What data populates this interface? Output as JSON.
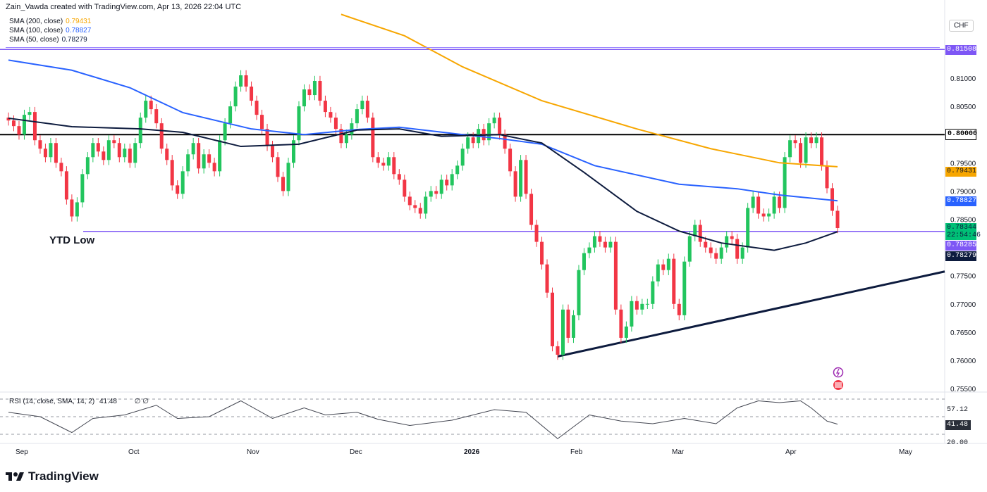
{
  "credit": "Zain_Vawda created with TradingView.com, Apr 13, 2026 22:04 UTC",
  "legend": [
    {
      "label": "SMA (200, close)",
      "value": "0.79431",
      "color": "#f7a600"
    },
    {
      "label": "SMA (100, close)",
      "value": "0.78827",
      "color": "#2962ff"
    },
    {
      "label": "SMA (50, close)",
      "value": "0.78279",
      "color": "#0d1b3e"
    }
  ],
  "currency": "CHF",
  "ytd_label": "YTD Low",
  "rsi_legend": {
    "label": "RSI (14, close, SMA, 14, 2)",
    "value": "41.48",
    "extra": "∅ ∅"
  },
  "brand": "TradingView",
  "x_labels": [
    {
      "t": "Sep",
      "x": 30
    },
    {
      "t": "Oct",
      "x": 190
    },
    {
      "t": "Nov",
      "x": 358
    },
    {
      "t": "Dec",
      "x": 504
    },
    {
      "t": "2026",
      "x": 666
    },
    {
      "t": "Feb",
      "x": 817
    },
    {
      "t": "Mar",
      "x": 961
    },
    {
      "t": "Apr",
      "x": 1122
    },
    {
      "t": "May",
      "x": 1283
    }
  ],
  "price_tags": {
    "resistance": {
      "value": "0.81508",
      "color": "#7e57f5"
    },
    "round": {
      "value": "0.80000",
      "color": "#000000"
    },
    "sma200": {
      "value": "0.79431",
      "color": "#f7a600"
    },
    "sma100": {
      "value": "0.78827",
      "color": "#2962ff"
    },
    "last": {
      "value": "0.78344",
      "countdown": "22:54:46",
      "color": "#00c076"
    },
    "ytd_low": {
      "value": "0.78285",
      "color": "#7e57f5"
    },
    "sma50": {
      "value": "0.78279",
      "color": "#0d1b3e"
    }
  },
  "rsi_tags": {
    "upper": "57.12",
    "current": "41.48",
    "lower": "20.00"
  },
  "chart_data": {
    "type": "candlestick",
    "symbol_quote": "CHF",
    "y_ticks": [
      "0.81000",
      "0.80500",
      "0.79500",
      "0.79000",
      "0.78500",
      "0.77500",
      "0.77000",
      "0.76500",
      "0.76000",
      "0.75500"
    ],
    "ylim": [
      0.7535,
      0.8255
    ],
    "up_color": "#089981",
    "down_color": "#f23645",
    "closes": [
      0.8025,
      0.8015,
      0.8,
      0.8035,
      0.804,
      0.799,
      0.7975,
      0.796,
      0.7985,
      0.795,
      0.7935,
      0.7885,
      0.7855,
      0.788,
      0.793,
      0.796,
      0.7985,
      0.797,
      0.7955,
      0.799,
      0.7985,
      0.796,
      0.7975,
      0.795,
      0.7985,
      0.803,
      0.806,
      0.8045,
      0.802,
      0.7975,
      0.7955,
      0.791,
      0.7895,
      0.7935,
      0.7965,
      0.7985,
      0.794,
      0.7965,
      0.795,
      0.7935,
      0.799,
      0.802,
      0.805,
      0.8085,
      0.8105,
      0.8085,
      0.806,
      0.8035,
      0.801,
      0.798,
      0.796,
      0.7925,
      0.79,
      0.795,
      0.799,
      0.805,
      0.808,
      0.807,
      0.8095,
      0.806,
      0.804,
      0.803,
      0.801,
      0.7985,
      0.8,
      0.802,
      0.8045,
      0.806,
      0.803,
      0.796,
      0.795,
      0.7945,
      0.796,
      0.793,
      0.792,
      0.789,
      0.7875,
      0.787,
      0.786,
      0.789,
      0.79,
      0.7895,
      0.792,
      0.791,
      0.793,
      0.7945,
      0.7975,
      0.7995,
      0.7985,
      0.801,
      0.799,
      0.802,
      0.803,
      0.8,
      0.7975,
      0.7935,
      0.789,
      0.7955,
      0.7895,
      0.784,
      0.781,
      0.777,
      0.772,
      0.7625,
      0.761,
      0.769,
      0.764,
      0.768,
      0.776,
      0.779,
      0.78,
      0.782,
      0.781,
      0.78,
      0.781,
      0.769,
      0.764,
      0.766,
      0.7705,
      0.769,
      0.77,
      0.77,
      0.774,
      0.777,
      0.776,
      0.778,
      0.77,
      0.768,
      0.7775,
      0.782,
      0.784,
      0.781,
      0.78,
      0.779,
      0.778,
      0.78,
      0.782,
      0.7815,
      0.778,
      0.78,
      0.787,
      0.789,
      0.786,
      0.7855,
      0.786,
      0.789,
      0.787,
      0.796,
      0.799,
      0.7985,
      0.795,
      0.7995,
      0.7985,
      0.7995,
      0.7945,
      0.7905,
      0.7865,
      0.78344
    ],
    "sma200": [
      [
        63,
        0.8213
      ],
      [
        75,
        0.8175
      ],
      [
        86,
        0.812
      ],
      [
        101,
        0.806
      ],
      [
        119,
        0.801
      ],
      [
        133,
        0.7975
      ],
      [
        146,
        0.795
      ],
      [
        157,
        0.79431
      ]
    ],
    "sma100": [
      [
        0,
        0.8132
      ],
      [
        12,
        0.8114
      ],
      [
        23,
        0.8083
      ],
      [
        33,
        0.8039
      ],
      [
        46,
        0.801
      ],
      [
        56,
        0.8
      ],
      [
        66,
        0.8009
      ],
      [
        74,
        0.8013
      ],
      [
        86,
        0.8
      ],
      [
        93,
        0.7993
      ],
      [
        101,
        0.7983
      ],
      [
        111,
        0.7945
      ],
      [
        127,
        0.7912
      ],
      [
        138,
        0.7904
      ],
      [
        146,
        0.7893
      ],
      [
        157,
        0.78827
      ]
    ],
    "sma50": [
      [
        0,
        0.8029
      ],
      [
        12,
        0.8014
      ],
      [
        25,
        0.801
      ],
      [
        33,
        0.8004
      ],
      [
        44,
        0.7979
      ],
      [
        55,
        0.7983
      ],
      [
        66,
        0.8008
      ],
      [
        74,
        0.801
      ],
      [
        82,
        0.7997
      ],
      [
        93,
        0.8
      ],
      [
        101,
        0.7985
      ],
      [
        109,
        0.7933
      ],
      [
        119,
        0.7864
      ],
      [
        127,
        0.7829
      ],
      [
        135,
        0.7808
      ],
      [
        145,
        0.7795
      ],
      [
        151,
        0.7808
      ],
      [
        157,
        0.78279
      ]
    ],
    "levels": [
      {
        "value": 0.81508,
        "color": "#7e57f5"
      },
      {
        "value": 0.8,
        "color": "#000000"
      },
      {
        "value": 0.78285,
        "color": "#7e57f5",
        "label": "YTD Low"
      }
    ],
    "trendline": [
      [
        104,
        0.7607
      ],
      [
        180,
        0.7763
      ]
    ],
    "rsi": {
      "levels": [
        70,
        50,
        30
      ],
      "ylim": [
        10,
        75
      ],
      "values": [
        [
          0,
          55
        ],
        [
          6,
          50
        ],
        [
          12,
          32
        ],
        [
          16,
          48
        ],
        [
          22,
          52
        ],
        [
          28,
          63
        ],
        [
          32,
          48
        ],
        [
          38,
          50
        ],
        [
          44,
          68
        ],
        [
          50,
          48
        ],
        [
          56,
          60
        ],
        [
          60,
          52
        ],
        [
          66,
          55
        ],
        [
          70,
          47
        ],
        [
          76,
          40
        ],
        [
          84,
          46
        ],
        [
          92,
          58
        ],
        [
          98,
          55
        ],
        [
          104,
          25
        ],
        [
          110,
          52
        ],
        [
          116,
          45
        ],
        [
          122,
          42
        ],
        [
          128,
          48
        ],
        [
          134,
          42
        ],
        [
          138,
          60
        ],
        [
          142,
          68
        ],
        [
          146,
          66
        ],
        [
          150,
          68
        ],
        [
          152,
          60
        ],
        [
          155,
          45
        ],
        [
          157,
          41.48
        ]
      ]
    }
  }
}
